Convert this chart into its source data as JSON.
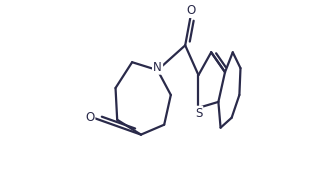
{
  "background": "#ffffff",
  "line_color": "#2a2a4a",
  "line_width": 1.6,
  "figsize": [
    3.14,
    1.75
  ],
  "dpi": 100,
  "atoms": {
    "N": {
      "label": "N",
      "fontsize": 8.5
    },
    "O": {
      "label": "O",
      "fontsize": 8.5
    },
    "S": {
      "label": "S",
      "fontsize": 8.5
    }
  }
}
